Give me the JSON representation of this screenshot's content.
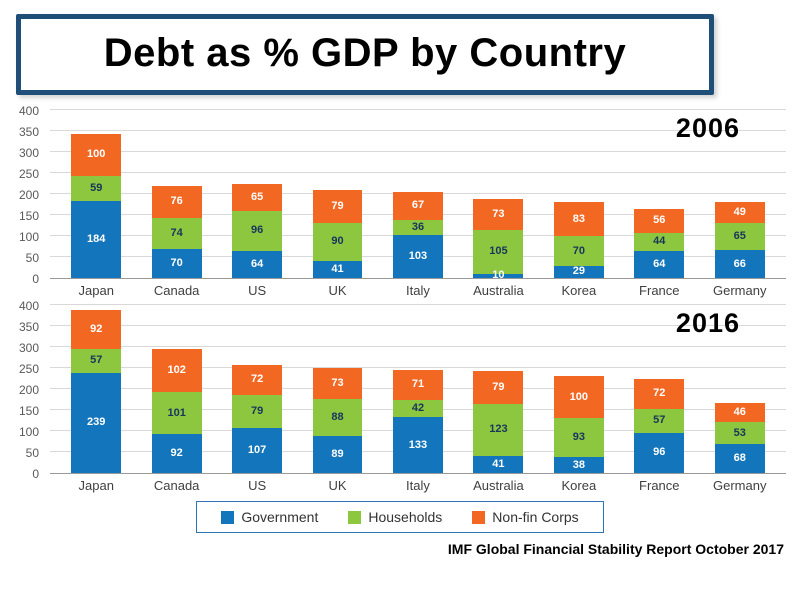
{
  "title": "Debt as % GDP by Country",
  "source": "IMF Global Financial Stability Report October 2017",
  "colors": {
    "title_border": "#1f4e79",
    "legend_border": "#2e75b6",
    "gridline": "#d9d9d9"
  },
  "legend": [
    {
      "label": "Government",
      "color": "#1375bb"
    },
    {
      "label": "Households",
      "color": "#8dc63f"
    },
    {
      "label": "Non-fin Corps",
      "color": "#f26722"
    }
  ],
  "chart_data": [
    {
      "type": "bar",
      "stacked": true,
      "year_label": "2006",
      "title": "Debt as % GDP by Country - 2006",
      "categories": [
        "Japan",
        "Canada",
        "US",
        "UK",
        "Italy",
        "Australia",
        "Korea",
        "France",
        "Germany"
      ],
      "series": [
        {
          "name": "Government",
          "color": "#1375bb",
          "label_color": "#ffffff",
          "values": [
            184,
            70,
            64,
            41,
            103,
            10,
            29,
            64,
            66
          ]
        },
        {
          "name": "Households",
          "color": "#8dc63f",
          "label_color": "#17365d",
          "values": [
            59,
            74,
            96,
            90,
            36,
            105,
            70,
            44,
            65
          ]
        },
        {
          "name": "Non-fin Corps",
          "color": "#f26722",
          "label_color": "#ffffff",
          "values": [
            100,
            76,
            65,
            79,
            67,
            73,
            83,
            56,
            49
          ]
        }
      ],
      "ylim": [
        0,
        400
      ],
      "yticks": [
        0,
        50,
        100,
        150,
        200,
        250,
        300,
        350,
        400
      ],
      "grid": true,
      "legend_position": "bottom-shared"
    },
    {
      "type": "bar",
      "stacked": true,
      "year_label": "2016",
      "title": "Debt as % GDP by Country - 2016",
      "categories": [
        "Japan",
        "Canada",
        "US",
        "UK",
        "Italy",
        "Australia",
        "Korea",
        "France",
        "Germany"
      ],
      "series": [
        {
          "name": "Government",
          "color": "#1375bb",
          "label_color": "#ffffff",
          "values": [
            239,
            92,
            107,
            89,
            133,
            41,
            38,
            96,
            68
          ]
        },
        {
          "name": "Households",
          "color": "#8dc63f",
          "label_color": "#17365d",
          "values": [
            57,
            101,
            79,
            88,
            42,
            123,
            93,
            57,
            53
          ]
        },
        {
          "name": "Non-fin Corps",
          "color": "#f26722",
          "label_color": "#ffffff",
          "values": [
            92,
            102,
            72,
            73,
            71,
            79,
            100,
            72,
            46
          ]
        }
      ],
      "ylim": [
        0,
        400
      ],
      "yticks": [
        0,
        50,
        100,
        150,
        200,
        250,
        300,
        350,
        400
      ],
      "grid": true,
      "legend_position": "bottom-shared"
    }
  ]
}
